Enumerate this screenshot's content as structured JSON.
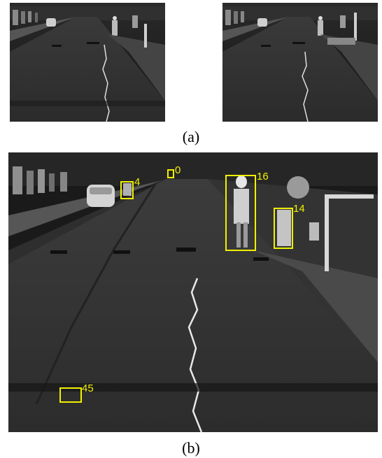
{
  "figure": {
    "caption_a": "(a)",
    "caption_b": "(b)"
  },
  "colors": {
    "box": "#f0f000",
    "label": "#f0f000"
  },
  "detections": [
    {
      "id": "4"
    },
    {
      "id": "0"
    },
    {
      "id": "16"
    },
    {
      "id": "14"
    },
    {
      "id": "45"
    }
  ]
}
